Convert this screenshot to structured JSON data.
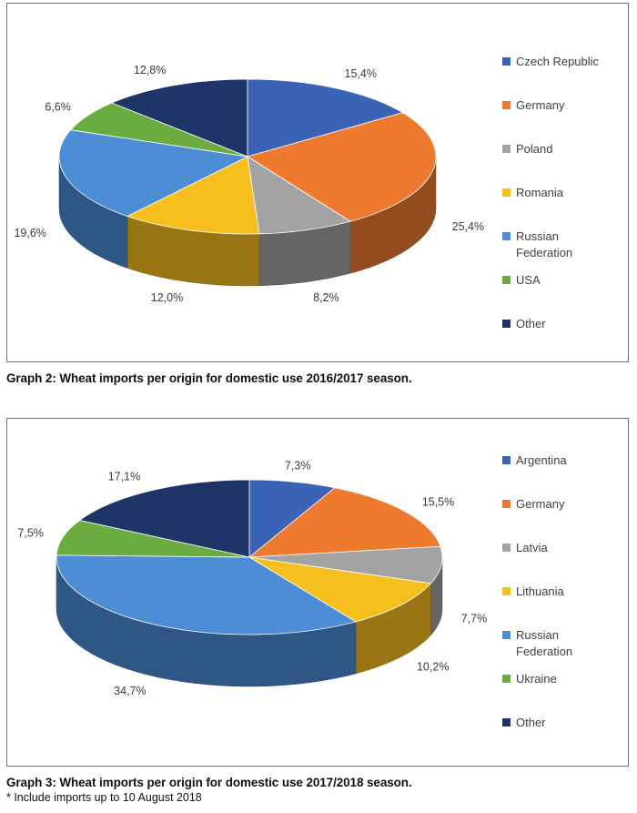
{
  "chart_data": [
    {
      "type": "pie",
      "categories": [
        "Czech Republic",
        "Germany",
        "Poland",
        "Romania",
        "Russian Federation",
        "USA",
        "Other"
      ],
      "values": [
        15.4,
        25.4,
        8.2,
        12.0,
        19.6,
        6.6,
        12.8
      ],
      "data_labels": [
        "15,4%",
        "25,4%",
        "8,2%",
        "12,0%",
        "19,6%",
        "6,6%",
        "12,8%"
      ],
      "colors": [
        "#3a62b5",
        "#ee7a30",
        "#a3a3a3",
        "#f7bf1e",
        "#4c8dd6",
        "#6aac3f",
        "#1f3567"
      ],
      "legend": [
        "Czech Republic",
        "Germany",
        "Poland",
        "Romania",
        [
          "Russian",
          "Federation"
        ],
        "USA",
        "Other"
      ],
      "legend_position": "right",
      "caption": "Graph 2: Wheat imports per origin for domestic use 2016/2017 season."
    },
    {
      "type": "pie",
      "categories": [
        "Argentina",
        "Germany",
        "Latvia",
        "Lithuania",
        "Russian Federation",
        "Ukraine",
        "Other"
      ],
      "values": [
        7.3,
        15.5,
        7.7,
        10.2,
        34.7,
        7.5,
        17.1
      ],
      "data_labels": [
        "7,3%",
        "15,5%",
        "7,7%",
        "10,2%",
        "34,7%",
        "7,5%",
        "17,1%"
      ],
      "colors": [
        "#3a62b5",
        "#ee7a30",
        "#a3a3a3",
        "#f7bf1e",
        "#4c8dd6",
        "#6aac3f",
        "#1f3567"
      ],
      "legend": [
        "Argentina",
        "Germany",
        "Latvia",
        "Lithuania",
        [
          "Russian",
          "Federation"
        ],
        "Ukraine",
        "Other"
      ],
      "legend_position": "right",
      "caption": "Graph 3: Wheat imports per origin for domestic use 2017/2018 season."
    }
  ],
  "footnote": "* Include imports up to 10 August 2018"
}
